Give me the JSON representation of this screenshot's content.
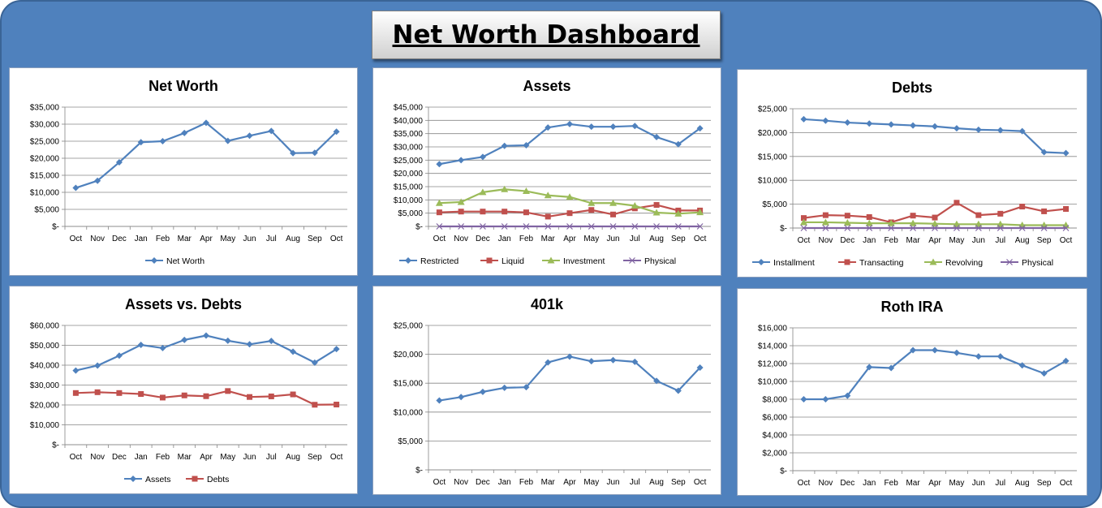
{
  "dashboard": {
    "title": "Net Worth Dashboard"
  },
  "chart_data": [
    {
      "type": "line",
      "title": "Net Worth",
      "categories": [
        "Oct",
        "Nov",
        "Dec",
        "Jan",
        "Feb",
        "Mar",
        "Apr",
        "May",
        "Jun",
        "Jul",
        "Aug",
        "Sep",
        "Oct"
      ],
      "ylim": [
        0,
        35000
      ],
      "yticks": [
        "$-",
        "$5,000",
        "$10,000",
        "$15,000",
        "$20,000",
        "$25,000",
        "$30,000",
        "$35,000"
      ],
      "series": [
        {
          "name": "Net Worth",
          "color": "#4f81bd",
          "marker": "diamond",
          "values": [
            11300,
            13400,
            18800,
            24700,
            25000,
            27400,
            30400,
            25100,
            26600,
            28000,
            21500,
            21600,
            27800
          ]
        }
      ],
      "legend": "bottom",
      "grid": true
    },
    {
      "type": "line",
      "title": "Assets",
      "categories": [
        "Oct",
        "Nov",
        "Dec",
        "Jan",
        "Feb",
        "Mar",
        "Apr",
        "May",
        "Jun",
        "Jul",
        "Aug",
        "Sep",
        "Oct"
      ],
      "ylim": [
        0,
        45000
      ],
      "yticks": [
        "$-",
        "$5,000",
        "$10,000",
        "$15,000",
        "$20,000",
        "$25,000",
        "$30,000",
        "$35,000",
        "$40,000",
        "$45,000"
      ],
      "series": [
        {
          "name": "Restricted",
          "color": "#4f81bd",
          "marker": "diamond",
          "values": [
            23500,
            25000,
            26200,
            30400,
            30600,
            37300,
            38600,
            37600,
            37600,
            37900,
            33700,
            31000,
            37000
          ]
        },
        {
          "name": "Liquid",
          "color": "#c0504d",
          "marker": "square",
          "values": [
            5300,
            5600,
            5600,
            5600,
            5300,
            3700,
            5000,
            6200,
            4500,
            6800,
            8100,
            6000,
            6000
          ]
        },
        {
          "name": "Investment",
          "color": "#9bbb59",
          "marker": "triangle",
          "values": [
            8800,
            9200,
            12900,
            14000,
            13300,
            11700,
            11100,
            8800,
            8800,
            7800,
            5200,
            4800,
            5300
          ]
        },
        {
          "name": "Physical",
          "color": "#8064a2",
          "marker": "x",
          "values": [
            0,
            0,
            0,
            0,
            0,
            0,
            0,
            0,
            0,
            0,
            0,
            0,
            0
          ]
        }
      ],
      "legend": "bottom",
      "grid": true
    },
    {
      "type": "line",
      "title": "Debts",
      "categories": [
        "Oct",
        "Nov",
        "Dec",
        "Jan",
        "Feb",
        "Mar",
        "Apr",
        "May",
        "Jun",
        "Jul",
        "Aug",
        "Sep",
        "Oct"
      ],
      "ylim": [
        0,
        25000
      ],
      "yticks": [
        "$-",
        "$5,000",
        "$10,000",
        "$15,000",
        "$20,000",
        "$25,000"
      ],
      "series": [
        {
          "name": "Installment",
          "color": "#4f81bd",
          "marker": "diamond",
          "values": [
            22800,
            22500,
            22100,
            21900,
            21700,
            21500,
            21300,
            20900,
            20600,
            20500,
            20300,
            15900,
            15700
          ]
        },
        {
          "name": "Transacting",
          "color": "#c0504d",
          "marker": "square",
          "values": [
            2100,
            2700,
            2600,
            2300,
            1200,
            2600,
            2200,
            5300,
            2700,
            3000,
            4500,
            3500,
            4000
          ]
        },
        {
          "name": "Revolving",
          "color": "#9bbb59",
          "marker": "triangle",
          "values": [
            1200,
            1200,
            1100,
            1000,
            1000,
            1000,
            900,
            800,
            800,
            800,
            600,
            600,
            600
          ]
        },
        {
          "name": "Physical",
          "color": "#8064a2",
          "marker": "x",
          "values": [
            0,
            0,
            0,
            0,
            0,
            0,
            0,
            0,
            0,
            0,
            0,
            0,
            0
          ]
        }
      ],
      "legend": "bottom",
      "grid": true
    },
    {
      "type": "line",
      "title": "Assets vs. Debts",
      "categories": [
        "Oct",
        "Nov",
        "Dec",
        "Jan",
        "Feb",
        "Mar",
        "Apr",
        "May",
        "Jun",
        "Jul",
        "Aug",
        "Sep",
        "Oct"
      ],
      "ylim": [
        0,
        60000
      ],
      "yticks": [
        "$-",
        "$10,000",
        "$20,000",
        "$30,000",
        "$40,000",
        "$50,000",
        "$60,000"
      ],
      "series": [
        {
          "name": "Assets",
          "color": "#4f81bd",
          "marker": "diamond",
          "values": [
            37300,
            39800,
            44800,
            50200,
            48600,
            52700,
            54900,
            52300,
            50500,
            52200,
            46800,
            41300,
            48100
          ]
        },
        {
          "name": "Debts",
          "color": "#c0504d",
          "marker": "square",
          "values": [
            26000,
            26400,
            26000,
            25500,
            23700,
            24800,
            24400,
            27000,
            24000,
            24300,
            25300,
            20100,
            20200
          ]
        }
      ],
      "legend": "bottom",
      "grid": true
    },
    {
      "type": "line",
      "title": "401k",
      "categories": [
        "Oct",
        "Nov",
        "Dec",
        "Jan",
        "Feb",
        "Mar",
        "Apr",
        "May",
        "Jun",
        "Jul",
        "Aug",
        "Sep",
        "Oct"
      ],
      "ylim": [
        0,
        25000
      ],
      "yticks": [
        "$-",
        "$5,000",
        "$10,000",
        "$15,000",
        "$20,000",
        "$25,000"
      ],
      "series": [
        {
          "name": "401k",
          "color": "#4f81bd",
          "marker": "diamond",
          "values": [
            12000,
            12600,
            13500,
            14200,
            14300,
            18600,
            19600,
            18800,
            19000,
            18700,
            15400,
            13700,
            17700
          ]
        }
      ],
      "legend": "none",
      "grid": true
    },
    {
      "type": "line",
      "title": "Roth IRA",
      "categories": [
        "Oct",
        "Nov",
        "Dec",
        "Jan",
        "Feb",
        "Mar",
        "Apr",
        "May",
        "Jun",
        "Jul",
        "Aug",
        "Sep",
        "Oct"
      ],
      "ylim": [
        0,
        16000
      ],
      "yticks": [
        "$-",
        "$2,000",
        "$4,000",
        "$6,000",
        "$8,000",
        "$10,000",
        "$12,000",
        "$14,000",
        "$16,000"
      ],
      "series": [
        {
          "name": "Roth IRA",
          "color": "#4f81bd",
          "marker": "diamond",
          "values": [
            8000,
            8000,
            8400,
            11600,
            11500,
            13500,
            13500,
            13200,
            12800,
            12800,
            11800,
            10900,
            12300
          ]
        }
      ],
      "legend": "none",
      "grid": true
    }
  ]
}
